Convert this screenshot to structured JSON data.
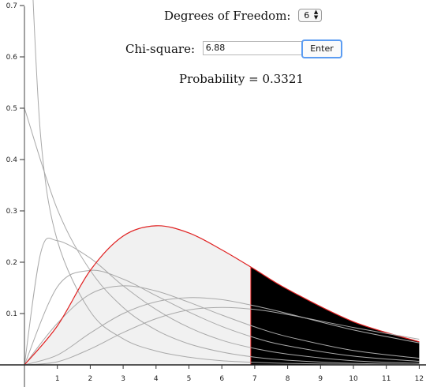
{
  "controls": {
    "dof_label": "Degrees of Freedom:",
    "dof_value": "6",
    "chi_label": "Chi-square:",
    "chi_value": "6.88",
    "enter_label": "Enter",
    "probability_text": "Probability = 0.3321"
  },
  "chart_data": {
    "type": "line",
    "title": "",
    "xlabel": "",
    "ylabel": "",
    "xlim": [
      0,
      12.2
    ],
    "ylim": [
      0,
      0.7
    ],
    "x_ticks": [
      "1",
      "2",
      "3",
      "4",
      "5",
      "6",
      "7",
      "8",
      "9",
      "10",
      "11",
      "12"
    ],
    "y_ticks": [
      "0.1",
      "0.2",
      "0.3",
      "0.4",
      "0.5",
      "0.6",
      "0.7"
    ],
    "series": [
      {
        "df": 1,
        "values": [
          [
            0.2,
            0.8
          ],
          [
            0.5,
            0.439
          ],
          [
            1,
            0.242
          ],
          [
            2,
            0.104
          ],
          [
            3,
            0.051
          ],
          [
            4,
            0.027
          ],
          [
            5,
            0.015
          ],
          [
            6,
            0.008
          ],
          [
            7,
            0.005
          ],
          [
            8,
            0.003
          ],
          [
            10,
            0.001
          ],
          [
            12,
            0.0003
          ]
        ]
      },
      {
        "df": 2,
        "values": [
          [
            0,
            0.5
          ],
          [
            1,
            0.303
          ],
          [
            2,
            0.184
          ],
          [
            3,
            0.112
          ],
          [
            4,
            0.068
          ],
          [
            5,
            0.041
          ],
          [
            6,
            0.025
          ],
          [
            7,
            0.015
          ],
          [
            8,
            0.009
          ],
          [
            10,
            0.003
          ],
          [
            12,
            0.001
          ]
        ]
      },
      {
        "df": 3,
        "values": [
          [
            0,
            0
          ],
          [
            0.5,
            0.22
          ],
          [
            1,
            0.242
          ],
          [
            2,
            0.208
          ],
          [
            3,
            0.154
          ],
          [
            4,
            0.108
          ],
          [
            5,
            0.073
          ],
          [
            6,
            0.048
          ],
          [
            7,
            0.032
          ],
          [
            8,
            0.021
          ],
          [
            10,
            0.008
          ],
          [
            12,
            0.003
          ]
        ]
      },
      {
        "df": 4,
        "values": [
          [
            0,
            0
          ],
          [
            1,
            0.152
          ],
          [
            2,
            0.184
          ],
          [
            3,
            0.167
          ],
          [
            4,
            0.135
          ],
          [
            5,
            0.103
          ],
          [
            6,
            0.075
          ],
          [
            7,
            0.053
          ],
          [
            8,
            0.037
          ],
          [
            10,
            0.017
          ],
          [
            12,
            0.007
          ]
        ]
      },
      {
        "df": 5,
        "values": [
          [
            0,
            0
          ],
          [
            1,
            0.081
          ],
          [
            2,
            0.138
          ],
          [
            3,
            0.154
          ],
          [
            4,
            0.144
          ],
          [
            5,
            0.122
          ],
          [
            6,
            0.097
          ],
          [
            7,
            0.074
          ],
          [
            8,
            0.055
          ],
          [
            10,
            0.028
          ],
          [
            12,
            0.013
          ]
        ]
      },
      {
        "df": 6,
        "values": [
          [
            0,
            0
          ],
          [
            1,
            0.076
          ],
          [
            2,
            0.184
          ],
          [
            3,
            0.251
          ],
          [
            4,
            0.271
          ],
          [
            5,
            0.257
          ],
          [
            6,
            0.224
          ],
          [
            7,
            0.186
          ],
          [
            8,
            0.147
          ],
          [
            10,
            0.084
          ],
          [
            12,
            0.045
          ]
        ]
      },
      {
        "df": 7,
        "values": [
          [
            0,
            0
          ],
          [
            1,
            0.019
          ],
          [
            2,
            0.062
          ],
          [
            3,
            0.1
          ],
          [
            4,
            0.123
          ],
          [
            5,
            0.131
          ],
          [
            6,
            0.127
          ],
          [
            7,
            0.115
          ],
          [
            8,
            0.1
          ],
          [
            10,
            0.068
          ],
          [
            12,
            0.043
          ]
        ]
      },
      {
        "df": 8,
        "values": [
          [
            0,
            0
          ],
          [
            1,
            0.006
          ],
          [
            2,
            0.031
          ],
          [
            3,
            0.063
          ],
          [
            4,
            0.09
          ],
          [
            5,
            0.107
          ],
          [
            6,
            0.112
          ],
          [
            7,
            0.108
          ],
          [
            8,
            0.098
          ],
          [
            10,
            0.073
          ],
          [
            12,
            0.05
          ]
        ]
      }
    ],
    "highlight_df": 6,
    "critical_value": 6.88,
    "colors": {
      "curves": "#a9a9a9",
      "highlight": "#e02020",
      "left_fill": "#f1f1f1",
      "tail_fill": "#000000"
    }
  }
}
